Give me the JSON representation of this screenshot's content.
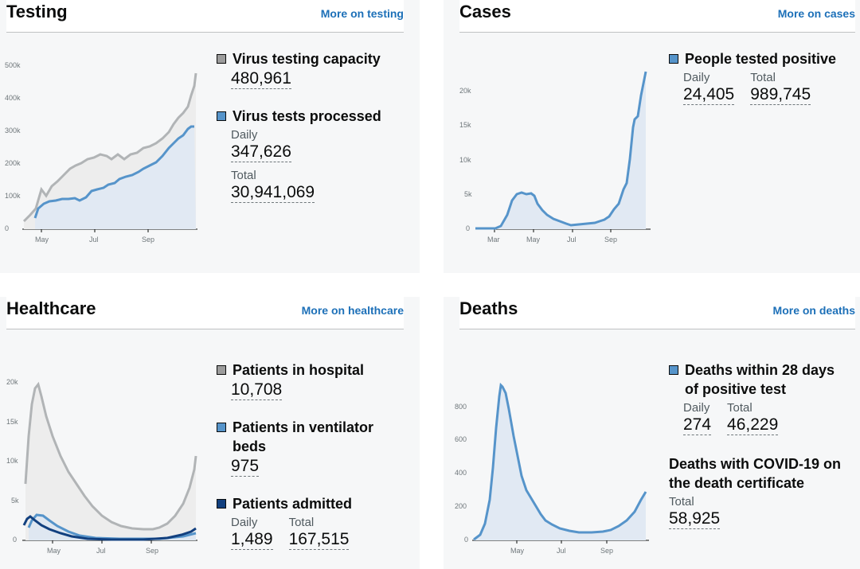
{
  "cards": {
    "testing": {
      "title": "Testing",
      "link": "More on testing",
      "metrics": {
        "capacity": {
          "label": "Virus testing capacity",
          "value": "480,961"
        },
        "processed": {
          "label": "Virus tests processed",
          "daily_label": "Daily",
          "daily": "347,626",
          "total_label": "Total",
          "total": "30,941,069"
        }
      },
      "chart": {
        "y_ticks": [
          "0",
          "100k",
          "200k",
          "300k",
          "400k",
          "500k"
        ],
        "x_ticks": [
          "May",
          "Jul",
          "Sep"
        ],
        "colors": {
          "capacity": "#b1b4b6",
          "processed": "#5694ca"
        }
      }
    },
    "cases": {
      "title": "Cases",
      "link": "More on cases",
      "metrics": {
        "positive": {
          "label": "People tested positive",
          "daily_label": "Daily",
          "daily": "24,405",
          "total_label": "Total",
          "total": "989,745"
        }
      },
      "chart": {
        "y_ticks": [
          "0",
          "5k",
          "10k",
          "15k",
          "20k"
        ],
        "x_ticks": [
          "Mar",
          "May",
          "Jul",
          "Sep"
        ],
        "colors": {
          "cases": "#5694ca"
        }
      }
    },
    "healthcare": {
      "title": "Healthcare",
      "link": "More on healthcare",
      "metrics": {
        "hospital": {
          "label": "Patients in hospital",
          "value": "10,708"
        },
        "ventilator": {
          "label": "Patients in ventilator beds",
          "value": "975"
        },
        "admitted": {
          "label": "Patients admitted",
          "daily_label": "Daily",
          "daily": "1,489",
          "total_label": "Total",
          "total": "167,515"
        }
      },
      "chart": {
        "y_ticks": [
          "0",
          "5k",
          "10k",
          "15k",
          "20k"
        ],
        "x_ticks": [
          "May",
          "Jul",
          "Sep"
        ],
        "colors": {
          "hospital": "#b1b4b6",
          "ventilator": "#5694ca",
          "admitted": "#12407f"
        }
      }
    },
    "deaths": {
      "title": "Deaths",
      "link": "More on deaths",
      "metrics": {
        "within28": {
          "label": "Deaths within 28 days of positive test",
          "daily_label": "Daily",
          "daily": "274",
          "total_label": "Total",
          "total": "46,229"
        },
        "certificate": {
          "label": "Deaths with COVID-19 on the death certificate",
          "total_label": "Total",
          "total": "58,925"
        }
      },
      "chart": {
        "y_ticks": [
          "0",
          "200",
          "400",
          "600",
          "800"
        ],
        "x_ticks": [
          "May",
          "Jul",
          "Sep"
        ],
        "colors": {
          "deaths": "#5694ca"
        }
      }
    }
  }
}
